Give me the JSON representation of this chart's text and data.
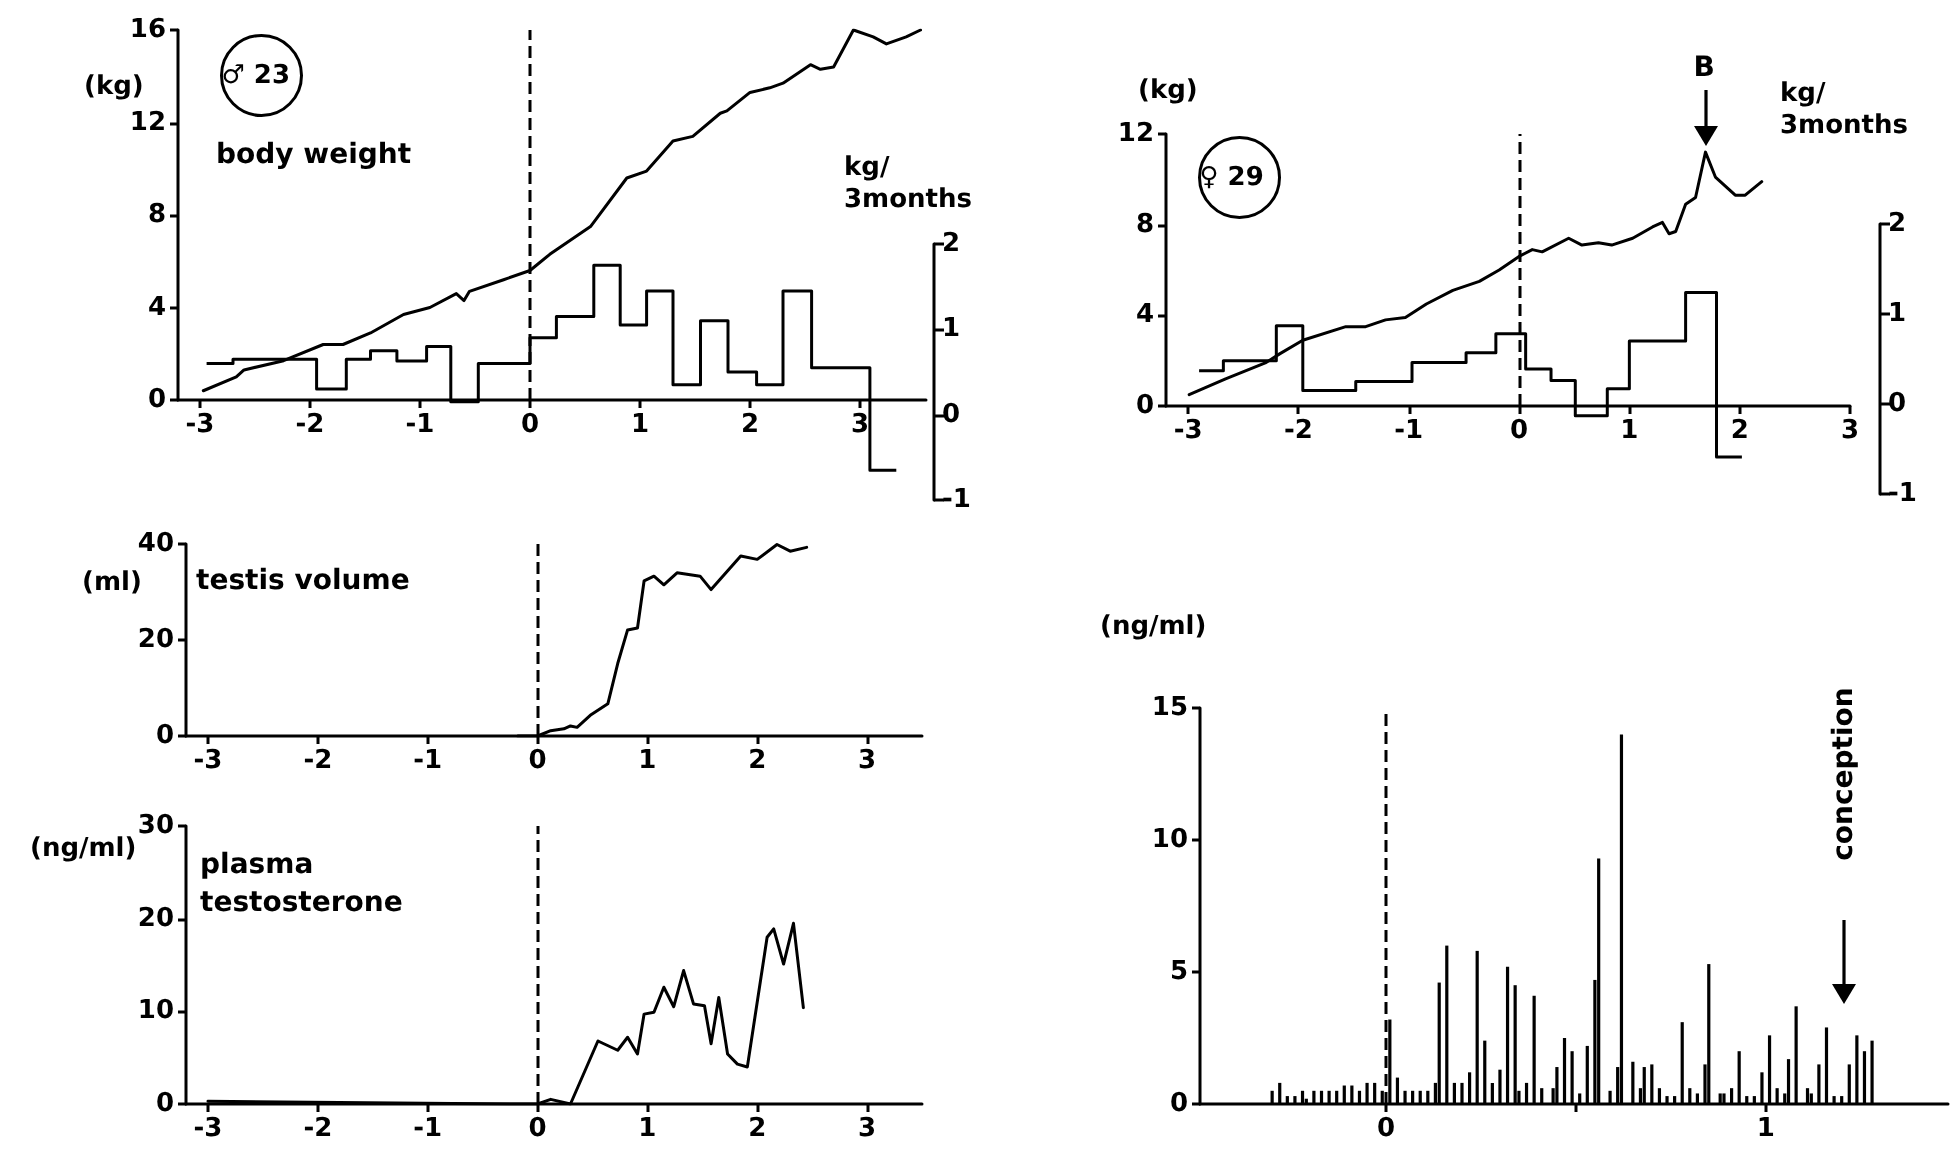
{
  "chart_data": [
    {
      "type": "line",
      "title": "body weight",
      "ylabel": "(kg)",
      "y2label": "kg/\n3months",
      "annotations": [
        "♂ 23"
      ],
      "xlim": [
        -3.2,
        3.6
      ],
      "xticks": [
        -3,
        -2,
        -1,
        0,
        1,
        2,
        3
      ],
      "ylim": [
        0,
        16
      ],
      "yticks": [
        0,
        4,
        8,
        12,
        16
      ],
      "y2lim": [
        -1,
        2
      ],
      "y2ticks": [
        -1,
        0,
        1,
        2
      ],
      "ref_lines": [
        {
          "axis": "x",
          "value": 0,
          "line_style": "dashed",
          "color": "#000000"
        }
      ],
      "series": [
        {
          "color": "#000000",
          "x": [
            -2.97,
            -2.67,
            -2.6,
            -2.24,
            -1.88,
            -1.7,
            -1.45,
            -1.15,
            -0.91,
            -0.67,
            -0.6,
            -0.55,
            -0.24,
            0,
            0.18,
            0.24,
            0.55,
            0.88,
            1.06,
            1.3,
            1.48,
            1.73,
            1.79,
            2.0,
            2.18,
            2.3,
            2.55,
            2.64,
            2.76,
            2.94,
            3.12,
            3.24,
            3.42,
            3.55
          ],
          "values": [
            0.4,
            1.0,
            1.3,
            1.7,
            2.4,
            2.4,
            2.9,
            3.7,
            4.0,
            4.6,
            4.3,
            4.7,
            5.2,
            5.6,
            6.3,
            6.5,
            7.5,
            9.6,
            9.9,
            11.2,
            11.4,
            12.4,
            12.5,
            13.3,
            13.5,
            13.7,
            14.5,
            14.3,
            14.4,
            16.0,
            15.7,
            15.4,
            15.7,
            16.0
          ]
        },
        {
          "type": "step",
          "axis": "y2",
          "color": "#000000",
          "x": [
            -2.94,
            -2.7,
            -1.94,
            -1.67,
            -1.45,
            -1.21,
            -0.94,
            -0.72,
            -0.47,
            0,
            0.24,
            0.58,
            0.82,
            1.06,
            1.3,
            1.55,
            1.8,
            2.06,
            2.3,
            2.56,
            3.09,
            3.33
          ],
          "values": [
            0.6,
            0.65,
            0.3,
            0.65,
            0.75,
            0.63,
            0.8,
            0.15,
            0.6,
            0.9,
            1.15,
            1.75,
            1.05,
            1.45,
            0.35,
            1.1,
            0.5,
            0.35,
            1.45,
            0.55,
            -0.65,
            -0.65
          ]
        }
      ]
    },
    {
      "type": "line",
      "ylabel": "(kg)",
      "y2label": "kg/\n3months",
      "annotations": [
        "♀ 29",
        {
          "text": "B",
          "x": 1.69,
          "y": 11.2
        }
      ],
      "xlim": [
        -3.2,
        3
      ],
      "xticks": [
        -3,
        -2,
        -1,
        0,
        1,
        2,
        3
      ],
      "ylim": [
        0,
        12
      ],
      "yticks": [
        0,
        4,
        8,
        12
      ],
      "y2lim": [
        -1,
        2
      ],
      "y2ticks": [
        -1,
        0,
        1,
        2
      ],
      "ref_lines": [
        {
          "axis": "x",
          "value": 0,
          "line_style": "dashed",
          "color": "#000000"
        }
      ],
      "series": [
        {
          "color": "#000000",
          "x": [
            -2.99,
            -2.66,
            -2.3,
            -2.17,
            -1.96,
            -1.57,
            -1.39,
            -1.21,
            -1.03,
            -0.84,
            -0.6,
            -0.36,
            -0.18,
            0,
            0.12,
            0.21,
            0.45,
            0.57,
            0.72,
            0.84,
            1.03,
            1.21,
            1.3,
            1.36,
            1.42,
            1.51,
            1.6,
            1.69,
            1.78,
            1.96,
            2.05,
            2.2
          ],
          "values": [
            0.5,
            1.2,
            1.9,
            2.3,
            2.9,
            3.5,
            3.5,
            3.8,
            3.9,
            4.5,
            5.1,
            5.5,
            6.0,
            6.6,
            6.9,
            6.8,
            7.4,
            7.1,
            7.2,
            7.1,
            7.4,
            7.9,
            8.1,
            7.6,
            7.7,
            8.9,
            9.2,
            11.2,
            10.1,
            9.3,
            9.3,
            9.9
          ]
        },
        {
          "type": "step",
          "axis": "y2",
          "color": "#000000",
          "x": [
            -2.9,
            -2.68,
            -2.2,
            -1.96,
            -1.48,
            -0.97,
            -0.48,
            -0.21,
            0.06,
            0.29,
            0.51,
            0.8,
            1.0,
            1.51,
            1.79,
            2.02
          ],
          "values": [
            0.37,
            0.48,
            0.87,
            0.15,
            0.25,
            0.46,
            0.57,
            0.78,
            0.39,
            0.26,
            -0.13,
            0.17,
            0.7,
            1.24,
            -0.59,
            -0.59
          ]
        }
      ]
    },
    {
      "type": "line",
      "title": "testis volume",
      "ylabel": "(ml)",
      "xlim": [
        -3.2,
        3.5
      ],
      "xticks": [
        -3,
        -2,
        -1,
        0,
        1,
        2,
        3
      ],
      "ylim": [
        0,
        40
      ],
      "yticks": [
        0,
        20,
        40
      ],
      "ref_lines": [
        {
          "axis": "x",
          "value": 0,
          "line_style": "dashed",
          "color": "#000000"
        }
      ],
      "series": [
        {
          "color": "#000000",
          "x": [
            -0.18,
            0,
            0.12,
            0.24,
            0.3,
            0.36,
            0.48,
            0.64,
            0.73,
            0.82,
            0.91,
            0.97,
            1.06,
            1.15,
            1.27,
            1.48,
            1.58,
            1.85,
            2.0,
            2.18,
            2.3,
            2.45
          ],
          "values": [
            0,
            0,
            1.1,
            1.5,
            2.1,
            1.8,
            4.3,
            6.7,
            15.1,
            22.1,
            22.5,
            32.3,
            33.3,
            31.5,
            34,
            33.3,
            30.5,
            37.5,
            36.8,
            39.9,
            38.5,
            39.3
          ]
        }
      ]
    },
    {
      "type": "line",
      "title": "plasma testosterone",
      "ylabel": "(ng/ml)",
      "xlim": [
        -3.2,
        3.5
      ],
      "xticks": [
        -3,
        -2,
        -1,
        0,
        1,
        2,
        3
      ],
      "ylim": [
        0,
        30
      ],
      "yticks": [
        0,
        10,
        20,
        30
      ],
      "ref_lines": [
        {
          "axis": "x",
          "value": 0,
          "line_style": "dashed",
          "color": "#000000"
        }
      ],
      "series": [
        {
          "color": "#000000",
          "x": [
            -3,
            -0.24,
            0,
            0.12,
            0.3,
            0.55,
            0.73,
            0.82,
            0.91,
            0.97,
            1.06,
            1.15,
            1.24,
            1.33,
            1.42,
            1.52,
            1.58,
            1.65,
            1.73,
            1.82,
            1.91,
            2.09,
            2.15,
            2.24,
            2.33,
            2.42
          ],
          "values": [
            0.3,
            0,
            0,
            0.5,
            0,
            6.8,
            5.8,
            7.2,
            5.4,
            9.7,
            9.9,
            12.6,
            10.5,
            14.4,
            10.8,
            10.6,
            6.5,
            11.5,
            5.4,
            4.3,
            4.0,
            18,
            18.9,
            15.1,
            19.5,
            10.4
          ]
        }
      ]
    },
    {
      "type": "bar",
      "ylabel": "(ng/ml)",
      "annotations": [
        "conception"
      ],
      "xlim": [
        -0.49,
        1.48
      ],
      "xticks": [
        0,
        {
          "value": 0.5,
          "label": null
        },
        1
      ],
      "ylim": [
        0,
        15
      ],
      "yticks": [
        0,
        5,
        10,
        15
      ],
      "ref_lines": [
        {
          "axis": "x",
          "value": 0,
          "line_style": "dashed",
          "color": "#000000"
        }
      ],
      "series": [
        {
          "color": "#000000",
          "x": [
            -0.3,
            -0.28,
            -0.26,
            -0.24,
            -0.22,
            -0.21,
            -0.19,
            -0.17,
            -0.15,
            -0.13,
            -0.11,
            -0.09,
            -0.07,
            -0.05,
            -0.03,
            -0.01,
            0.01,
            0.03,
            0.05,
            0.07,
            0.09,
            0.11,
            0.13,
            0.14,
            0.16,
            0.18,
            0.2,
            0.22,
            0.24,
            0.26,
            0.28,
            0.3,
            0.32,
            0.34,
            0.35,
            0.37,
            0.39,
            0.41,
            0.44,
            0.45,
            0.47,
            0.49,
            0.51,
            0.53,
            0.55,
            0.56,
            0.59,
            0.61,
            0.62,
            0.65,
            0.67,
            0.68,
            0.7,
            0.72,
            0.74,
            0.76,
            0.78,
            0.8,
            0.82,
            0.84,
            0.85,
            0.88,
            0.89,
            0.91,
            0.93,
            0.95,
            0.97,
            0.99,
            1.01,
            1.03,
            1.05,
            1.06,
            1.08,
            1.11,
            1.12,
            1.14,
            1.16,
            1.18,
            1.2,
            1.22,
            1.24,
            1.26,
            1.28
          ],
          "values": [
            0.5,
            0.8,
            0.3,
            0.3,
            0.5,
            0.2,
            0.5,
            0.5,
            0.5,
            0.5,
            0.7,
            0.7,
            0.5,
            0.8,
            0.8,
            0.5,
            3.2,
            1.0,
            0.5,
            0.5,
            0.5,
            0.5,
            0.8,
            4.6,
            6.0,
            0.8,
            0.8,
            1.2,
            5.8,
            2.4,
            0.8,
            1.3,
            5.2,
            4.5,
            0.5,
            0.8,
            4.1,
            0.6,
            0.6,
            1.4,
            2.5,
            2.0,
            0.4,
            2.2,
            4.7,
            9.3,
            0.5,
            1.4,
            14.0,
            1.6,
            0.6,
            1.4,
            1.5,
            0.6,
            0.3,
            0.3,
            3.1,
            0.6,
            0.4,
            1.5,
            5.3,
            0.4,
            0.4,
            0.6,
            2.0,
            0.3,
            0.3,
            1.2,
            2.6,
            0.6,
            0.4,
            1.7,
            3.7,
            0.6,
            0.4,
            1.5,
            2.9,
            0.3,
            0.3,
            1.5,
            2.6,
            2.0,
            2.4
          ]
        }
      ]
    }
  ]
}
